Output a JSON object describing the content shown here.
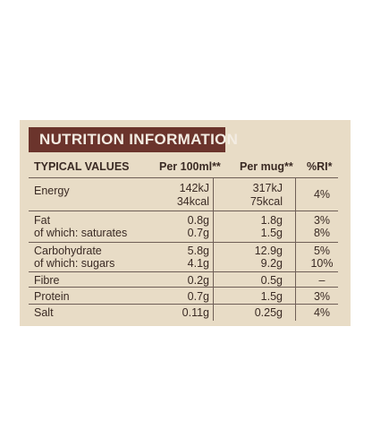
{
  "title": "NUTRITION INFORMATION",
  "columns": [
    "TYPICAL VALUES",
    "Per 100ml**",
    "Per mug**",
    "%RI*"
  ],
  "rows": [
    {
      "label": "Energy",
      "per100a": "142kJ",
      "per100b": "34kcal",
      "permuga": "317kJ",
      "permugb": "75kcal",
      "ri": "4%"
    },
    {
      "label": "Fat",
      "per100": "0.8g",
      "permug": "1.8g",
      "ri": "3%"
    },
    {
      "label": "of which: saturates",
      "per100": "0.7g",
      "permug": "1.5g",
      "ri": "8%"
    },
    {
      "label": "Carbohydrate",
      "per100": "5.8g",
      "permug": "12.9g",
      "ri": "5%"
    },
    {
      "label": "of which: sugars",
      "per100": "4.1g",
      "permug": "9.2g",
      "ri": "10%"
    },
    {
      "label": "Fibre",
      "per100": "0.2g",
      "permug": "0.5g",
      "ri": "–"
    },
    {
      "label": "Protein",
      "per100": "0.7g",
      "permug": "1.5g",
      "ri": "3%"
    },
    {
      "label": "Salt",
      "per100": "0.11g",
      "permug": "0.25g",
      "ri": "4%"
    }
  ]
}
